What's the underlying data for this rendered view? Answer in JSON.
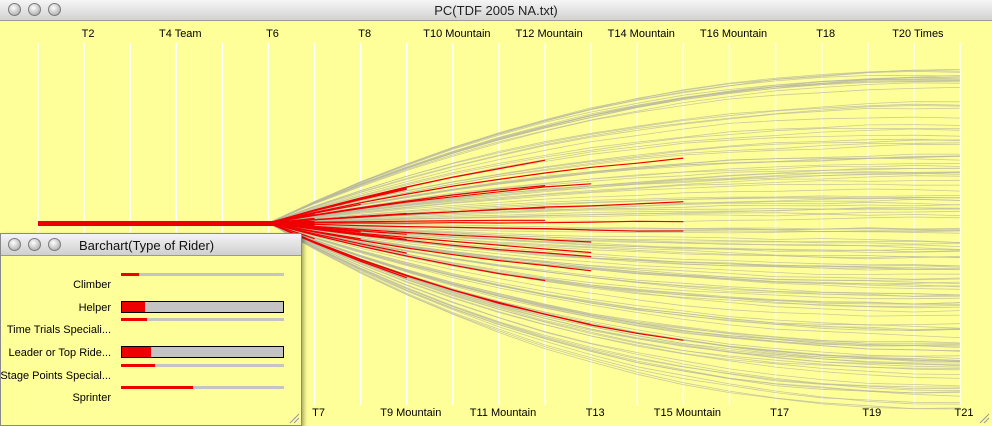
{
  "window": {
    "title": "PC(TDF 2005 NA.txt)",
    "background": "#ffff99"
  },
  "axes": {
    "top_labels": [
      "T2",
      "T4 Team",
      "T6",
      "T8",
      "T10 Mountain",
      "T12 Mountain",
      "T14 Mountain",
      "T16 Mountain",
      "T18",
      "T20 Times"
    ],
    "bottom_labels": [
      "T7",
      "T9 Mountain",
      "T11 Mountain",
      "T13",
      "T15 Mountain",
      "T17",
      "T19",
      "T21"
    ]
  },
  "chart_data": {
    "type": "parallel_coordinates",
    "highlight_color": "#ee0000",
    "context_color": "#b8b8a0"
  },
  "barchart": {
    "title": "Barchart(Type of Rider)",
    "bar_color": "#ee0000",
    "track_color": "#c4c4c4",
    "rows": [
      {
        "label": "Climber",
        "fraction": 0.11
      },
      {
        "label": "Helper",
        "fraction": 0.14
      },
      {
        "label": "Time Trials Speciali...",
        "fraction": 0.16
      },
      {
        "label": "Leader or Top  Ride...",
        "fraction": 0.18
      },
      {
        "label": "Stage Points Special...",
        "fraction": 0.21
      },
      {
        "label": "Sprinter",
        "fraction": 0.44
      }
    ]
  }
}
